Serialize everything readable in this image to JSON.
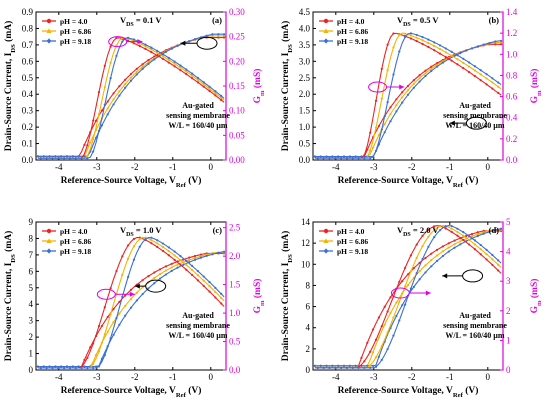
{
  "chart_data": [
    {
      "type": "line",
      "panel_label": "(a)",
      "vds_text": "V",
      "vds_sub": "DS",
      "vds_value": " = 0.1 V",
      "x_ticks": [
        "-4",
        "-3",
        "-2",
        "-1",
        "0"
      ],
      "xlim": [
        -4.6,
        0.4
      ],
      "ylim": [
        0,
        0.9
      ],
      "y_ticks": [
        "0.0",
        "0.1",
        "0.2",
        "0.3",
        "0.4",
        "0.5",
        "0.6",
        "0.7",
        "0.8",
        "0.9"
      ],
      "y2lim": [
        0,
        0.3
      ],
      "y2_ticks": [
        "0.00",
        "0.05",
        "0.10",
        "0.15",
        "0.20",
        "0.25",
        "0.30"
      ],
      "ids_series": [
        {
          "name": "pH = 4.0",
          "color": "#ee2222",
          "marker": "circle",
          "vt": -3.45,
          "sat": 0.73
        },
        {
          "name": "pH = 6.86",
          "color": "#f4b400",
          "marker": "triangle",
          "vt": -3.32,
          "sat": 0.74
        },
        {
          "name": "pH = 9.18",
          "color": "#3a6fd8",
          "marker": "diamond",
          "vt": -3.22,
          "sat": 0.75
        }
      ],
      "gm_series": [
        {
          "name": "pH = 4.0",
          "color": "#ee2222",
          "vstart": -3.4,
          "vpeak": -2.45,
          "peak": 0.248,
          "end": 0.114
        },
        {
          "name": "pH = 6.86",
          "color": "#f4b400",
          "vstart": -3.3,
          "vpeak": -2.3,
          "peak": 0.248,
          "end": 0.118
        },
        {
          "name": "pH = 9.18",
          "color": "#3a6fd8",
          "vstart": -3.2,
          "vpeak": -2.2,
          "peak": 0.248,
          "end": 0.122
        }
      ],
      "annotation_lines": [
        "Au-gated",
        "sensing membrane",
        "W/L = 160/40 µm"
      ],
      "ellipse_left": {
        "x": -2.45,
        "y": 0.24,
        "arrow_to": -1.8
      },
      "ellipse_right": {
        "x": -0.1,
        "y": 0.71,
        "arrow_to": -0.8
      }
    },
    {
      "type": "line",
      "panel_label": "(b)",
      "vds_text": "V",
      "vds_sub": "DS",
      "vds_value": " = 0.5 V",
      "x_ticks": [
        "-4",
        "-3",
        "-2",
        "-1",
        "0"
      ],
      "xlim": [
        -4.6,
        0.4
      ],
      "ylim": [
        0,
        4.5
      ],
      "y_ticks": [
        "0.0",
        "0.5",
        "1.0",
        "1.5",
        "2.0",
        "2.5",
        "3.0",
        "3.5",
        "4.0",
        "4.5"
      ],
      "y2lim": [
        0,
        1.4
      ],
      "y2_ticks": [
        "0.0",
        "0.2",
        "0.4",
        "0.6",
        "0.8",
        "1.0",
        "1.2",
        "1.4"
      ],
      "ids_series": [
        {
          "name": "pH = 4.0",
          "color": "#ee2222",
          "marker": "circle",
          "vt": -3.25,
          "sat": 3.45
        },
        {
          "name": "pH = 6.86",
          "color": "#f4b400",
          "marker": "triangle",
          "vt": -3.12,
          "sat": 3.5
        },
        {
          "name": "pH = 9.18",
          "color": "#3a6fd8",
          "marker": "diamond",
          "vt": -3.0,
          "sat": 3.55
        }
      ],
      "gm_series": [
        {
          "name": "pH = 4.0",
          "color": "#ee2222",
          "vstart": -3.3,
          "vpeak": -2.45,
          "peak": 1.2,
          "end": 0.6
        },
        {
          "name": "pH = 6.86",
          "color": "#f4b400",
          "vstart": -3.2,
          "vpeak": -2.25,
          "peak": 1.2,
          "end": 0.66
        },
        {
          "name": "pH = 9.18",
          "color": "#3a6fd8",
          "vstart": -3.05,
          "vpeak": -2.05,
          "peak": 1.2,
          "end": 0.7
        }
      ],
      "annotation_lines": [
        "Au-gated",
        "sensing membrane",
        "W/L = 160/40 µm"
      ],
      "ellipse_left": {
        "x": -2.9,
        "y": 0.69,
        "arrow_to": -2.2
      },
      "ellipse_right": {
        "x": -0.3,
        "y": 1.12,
        "arrow_to": -1.0
      }
    },
    {
      "type": "line",
      "panel_label": "(c)",
      "vds_text": "V",
      "vds_sub": "DS",
      "vds_value": " = 1.0 V",
      "x_ticks": [
        "-4",
        "-3",
        "-2",
        "-1",
        "0"
      ],
      "xlim": [
        -4.6,
        0.4
      ],
      "ylim": [
        0,
        9
      ],
      "y_ticks": [
        "0",
        "1",
        "2",
        "3",
        "4",
        "5",
        "6",
        "7",
        "8",
        "9"
      ],
      "y2lim": [
        0,
        2.6
      ],
      "y2_ticks": [
        "0.0",
        "0.5",
        "1.0",
        "1.5",
        "2.0",
        "2.5"
      ],
      "ids_series": [
        {
          "name": "pH = 4.0",
          "color": "#ee2222",
          "marker": "circle",
          "vt": -3.4,
          "sat": 6.95
        },
        {
          "name": "pH = 6.86",
          "color": "#f4b400",
          "marker": "triangle",
          "vt": -3.15,
          "sat": 7.0
        },
        {
          "name": "pH = 9.18",
          "color": "#3a6fd8",
          "marker": "diamond",
          "vt": -2.95,
          "sat": 7.05
        }
      ],
      "gm_series": [
        {
          "name": "pH = 4.0",
          "color": "#ee2222",
          "vstart": -3.45,
          "vpeak": -1.9,
          "peak": 2.33,
          "end": 1.08
        },
        {
          "name": "pH = 6.86",
          "color": "#f4b400",
          "vstart": -3.2,
          "vpeak": -1.75,
          "peak": 2.33,
          "end": 1.18
        },
        {
          "name": "pH = 9.18",
          "color": "#3a6fd8",
          "vstart": -3.0,
          "vpeak": -1.6,
          "peak": 2.33,
          "end": 1.25
        }
      ],
      "annotation_lines": [
        "Au-gated",
        "sensing membrane",
        "W/L = 160/40 µm"
      ],
      "ellipse_left": {
        "x": -2.75,
        "y": 1.33,
        "arrow_to": -2.0
      },
      "ellipse_right": {
        "x": -1.45,
        "y": 5.1,
        "arrow_to": -2.0
      }
    },
    {
      "type": "line",
      "panel_label": "(d)",
      "vds_text": "V",
      "vds_sub": "DS",
      "vds_value": " = 2.0 V",
      "x_ticks": [
        "-4",
        "-3",
        "-2",
        "-1",
        "0"
      ],
      "xlim": [
        -4.6,
        0.4
      ],
      "ylim": [
        0,
        14
      ],
      "y_ticks": [
        "0",
        "2",
        "4",
        "6",
        "8",
        "10",
        "12",
        "14"
      ],
      "y2lim": [
        0,
        5
      ],
      "y2_ticks": [
        "0",
        "1",
        "2",
        "3",
        "4",
        "5"
      ],
      "ids_series": [
        {
          "name": "pH = 4.0",
          "color": "#ee2222",
          "marker": "circle",
          "vt": -3.4,
          "sat": 12.9
        },
        {
          "name": "pH = 6.86",
          "color": "#f4b400",
          "marker": "triangle",
          "vt": -3.15,
          "sat": 13.0
        },
        {
          "name": "pH = 9.18",
          "color": "#3a6fd8",
          "marker": "diamond",
          "vt": -2.95,
          "sat": 13.1
        }
      ],
      "gm_series": [
        {
          "name": "pH = 4.0",
          "color": "#ee2222",
          "vstart": -3.45,
          "vpeak": -1.3,
          "peak": 4.88,
          "end": 3.2
        },
        {
          "name": "pH = 6.86",
          "color": "#f4b400",
          "vstart": -3.2,
          "vpeak": -1.15,
          "peak": 4.88,
          "end": 3.4
        },
        {
          "name": "pH = 9.18",
          "color": "#3a6fd8",
          "vstart": -3.0,
          "vpeak": -1.0,
          "peak": 4.88,
          "end": 3.55
        }
      ],
      "annotation_lines": [
        "Au-gated",
        "sensing membrane",
        "W/L = 160/40 µm"
      ],
      "ellipse_left": {
        "x": -2.3,
        "y": 2.6,
        "arrow_to": -1.5
      },
      "ellipse_right": {
        "x": -0.4,
        "y": 8.9,
        "arrow_to": -1.2
      }
    }
  ],
  "axis_text": {
    "ylabel_main": "Drain-Source Current, I",
    "ylabel_sub": "DS",
    "ylabel_unit": " (mA)",
    "xlabel_main": "Reference-Source Voltage, V",
    "xlabel_sub": "Ref",
    "xlabel_unit": " (V)",
    "y2label_main": "G",
    "y2label_sub": "m",
    "y2label_unit": " (mS)"
  },
  "colors": {
    "gm_axis": "#e000e0",
    "ids_axis": "#000000"
  }
}
